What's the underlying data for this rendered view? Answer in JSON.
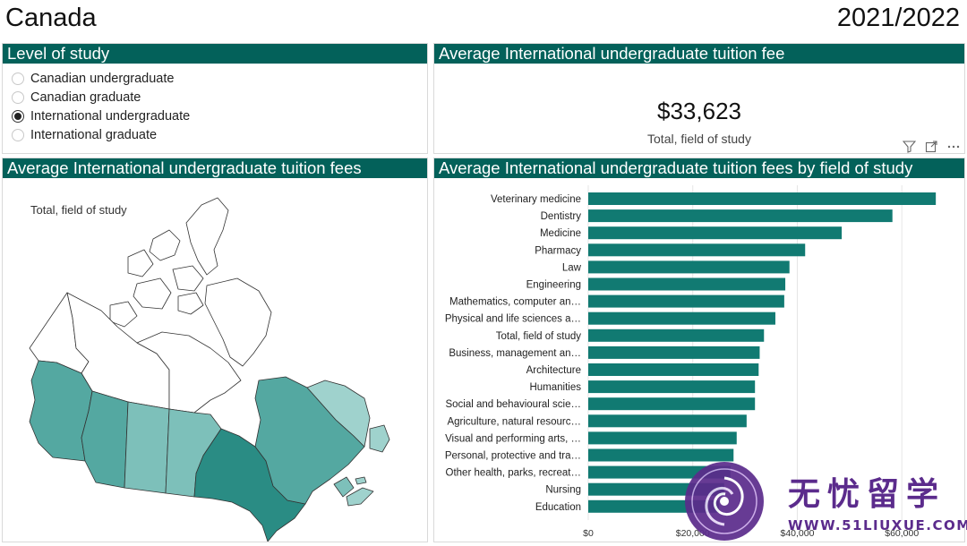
{
  "header": {
    "title": "Canada",
    "year": "2021/2022"
  },
  "level_panel": {
    "title": "Level of study",
    "options": [
      {
        "label": "Canadian undergraduate",
        "selected": false
      },
      {
        "label": "Canadian graduate",
        "selected": false
      },
      {
        "label": "International undergraduate",
        "selected": true
      },
      {
        "label": "International graduate",
        "selected": false
      }
    ]
  },
  "kpi_panel": {
    "title": "Average International undergraduate tuition fee",
    "value": "$33,623",
    "label": "Total, field of study",
    "tools": [
      "filter-icon",
      "focus-mode-icon",
      "more-options-icon"
    ]
  },
  "map_panel": {
    "title": "Average International undergraduate tuition fees",
    "caption": "Total, field of study",
    "colors": {
      "dark": "#2a8c84",
      "mid": "#54a8a1",
      "light": "#7dc0ba",
      "lighter": "#9fd2cd",
      "none": "#ffffff",
      "stroke": "#333333"
    }
  },
  "bar_panel": {
    "title": "Average International undergraduate tuition fees by field of study",
    "bar_color": "#117a72"
  },
  "chart_data": {
    "type": "bar",
    "orientation": "horizontal",
    "categories": [
      "Veterinary medicine",
      "Dentistry",
      "Medicine",
      "Pharmacy",
      "Law",
      "Engineering",
      "Mathematics, computer an…",
      "Physical and life sciences a…",
      "Total, field of study",
      "Business, management an…",
      "Architecture",
      "Humanities",
      "Social and behavioural scie…",
      "Agriculture, natural resourc…",
      "Visual and performing arts, …",
      "Personal, protective and tra…",
      "Other health, parks, recreat…",
      "Nursing",
      "Education"
    ],
    "values": [
      66500,
      58200,
      48500,
      41500,
      38500,
      37700,
      37500,
      35800,
      33623,
      32800,
      32600,
      31900,
      31900,
      30300,
      28400,
      27800,
      27200,
      26000,
      25000
    ],
    "xticks": [
      "$0",
      "$20,000",
      "$40,000",
      "$60,000"
    ],
    "xtick_values": [
      0,
      20000,
      40000,
      60000
    ],
    "xlim": [
      0,
      67500
    ]
  }
}
